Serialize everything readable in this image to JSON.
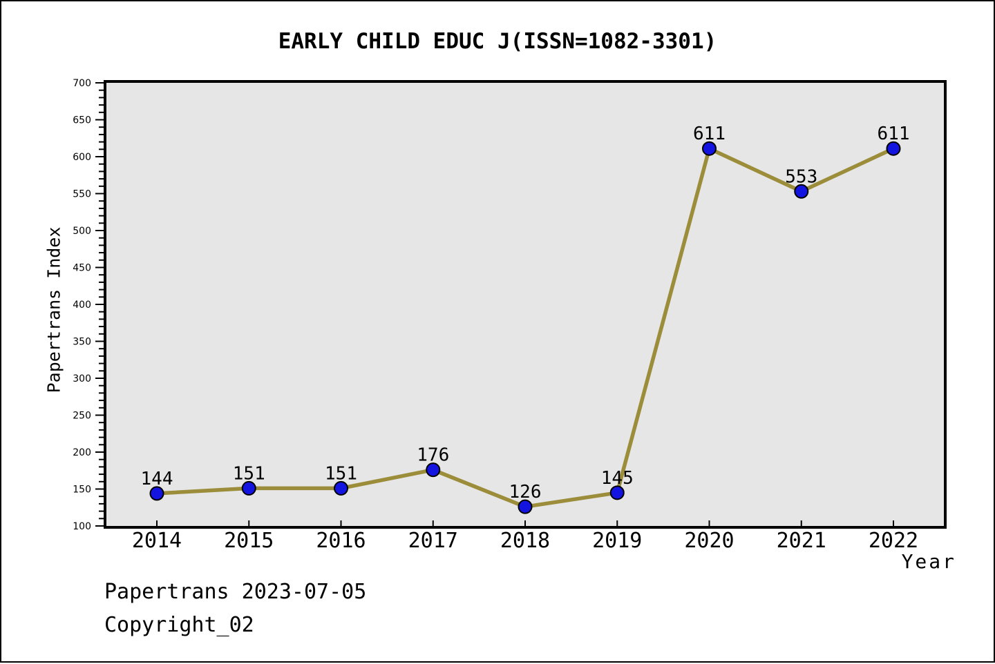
{
  "chart_data": {
    "type": "line",
    "title": "EARLY CHILD EDUC J(ISSN=1082-3301)",
    "categories": [
      "2014",
      "2015",
      "2016",
      "2017",
      "2018",
      "2019",
      "2020",
      "2021",
      "2022"
    ],
    "values": [
      144,
      151,
      151,
      176,
      126,
      145,
      611,
      553,
      611
    ],
    "point_labels": [
      "144",
      "151",
      "151",
      "176",
      "126",
      "145",
      "611",
      "553",
      "611"
    ],
    "xlabel": "Year",
    "ylabel": "Papertrans Index",
    "ylim": [
      100,
      700
    ],
    "yticks": [
      100,
      150,
      200,
      250,
      300,
      350,
      400,
      450,
      500,
      550,
      600,
      650,
      700
    ],
    "ytick_step": 50,
    "yminor_step": 10,
    "grid": false,
    "legend": null,
    "colors": {
      "line": "#9c8d3a",
      "marker": "#1414e0",
      "marker_edge": "#000000",
      "plot_bg": "#e6e6e6",
      "frame": "#000000",
      "text": "#000000",
      "page_bg": "#ffffff"
    }
  },
  "footer": {
    "line1": "Papertrans 2023-07-05",
    "line2": "Copyright_02"
  }
}
